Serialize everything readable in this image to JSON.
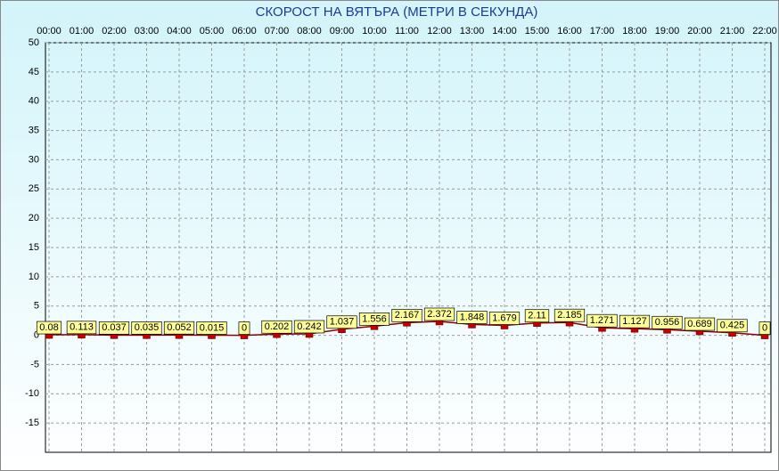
{
  "chart_data": {
    "type": "line",
    "title": "СКОРОСТ НА ВЯТЪРА (МЕТРИ В СЕКУНДА)",
    "categories": [
      "00:00",
      "01:00",
      "02:00",
      "03:00",
      "04:00",
      "05:00",
      "06:00",
      "07:00",
      "08:00",
      "09:00",
      "10:00",
      "11:00",
      "12:00",
      "13:00",
      "14:00",
      "15:00",
      "16:00",
      "17:00",
      "18:00",
      "19:00",
      "20:00",
      "21:00",
      "22:00"
    ],
    "values": [
      0.08,
      0.113,
      0.037,
      0.035,
      0.052,
      0.015,
      0,
      0.202,
      0.242,
      1.037,
      1.556,
      2.167,
      2.372,
      1.848,
      1.679,
      2.11,
      2.185,
      1.271,
      1.127,
      0.956,
      0.689,
      0.425,
      0
    ],
    "color": "#8b0000",
    "ylim": [
      -20,
      50
    ],
    "yticks": [
      -15,
      -10,
      -5,
      0,
      5,
      10,
      15,
      20,
      25,
      30,
      35,
      40,
      45,
      50
    ],
    "grid": true
  }
}
